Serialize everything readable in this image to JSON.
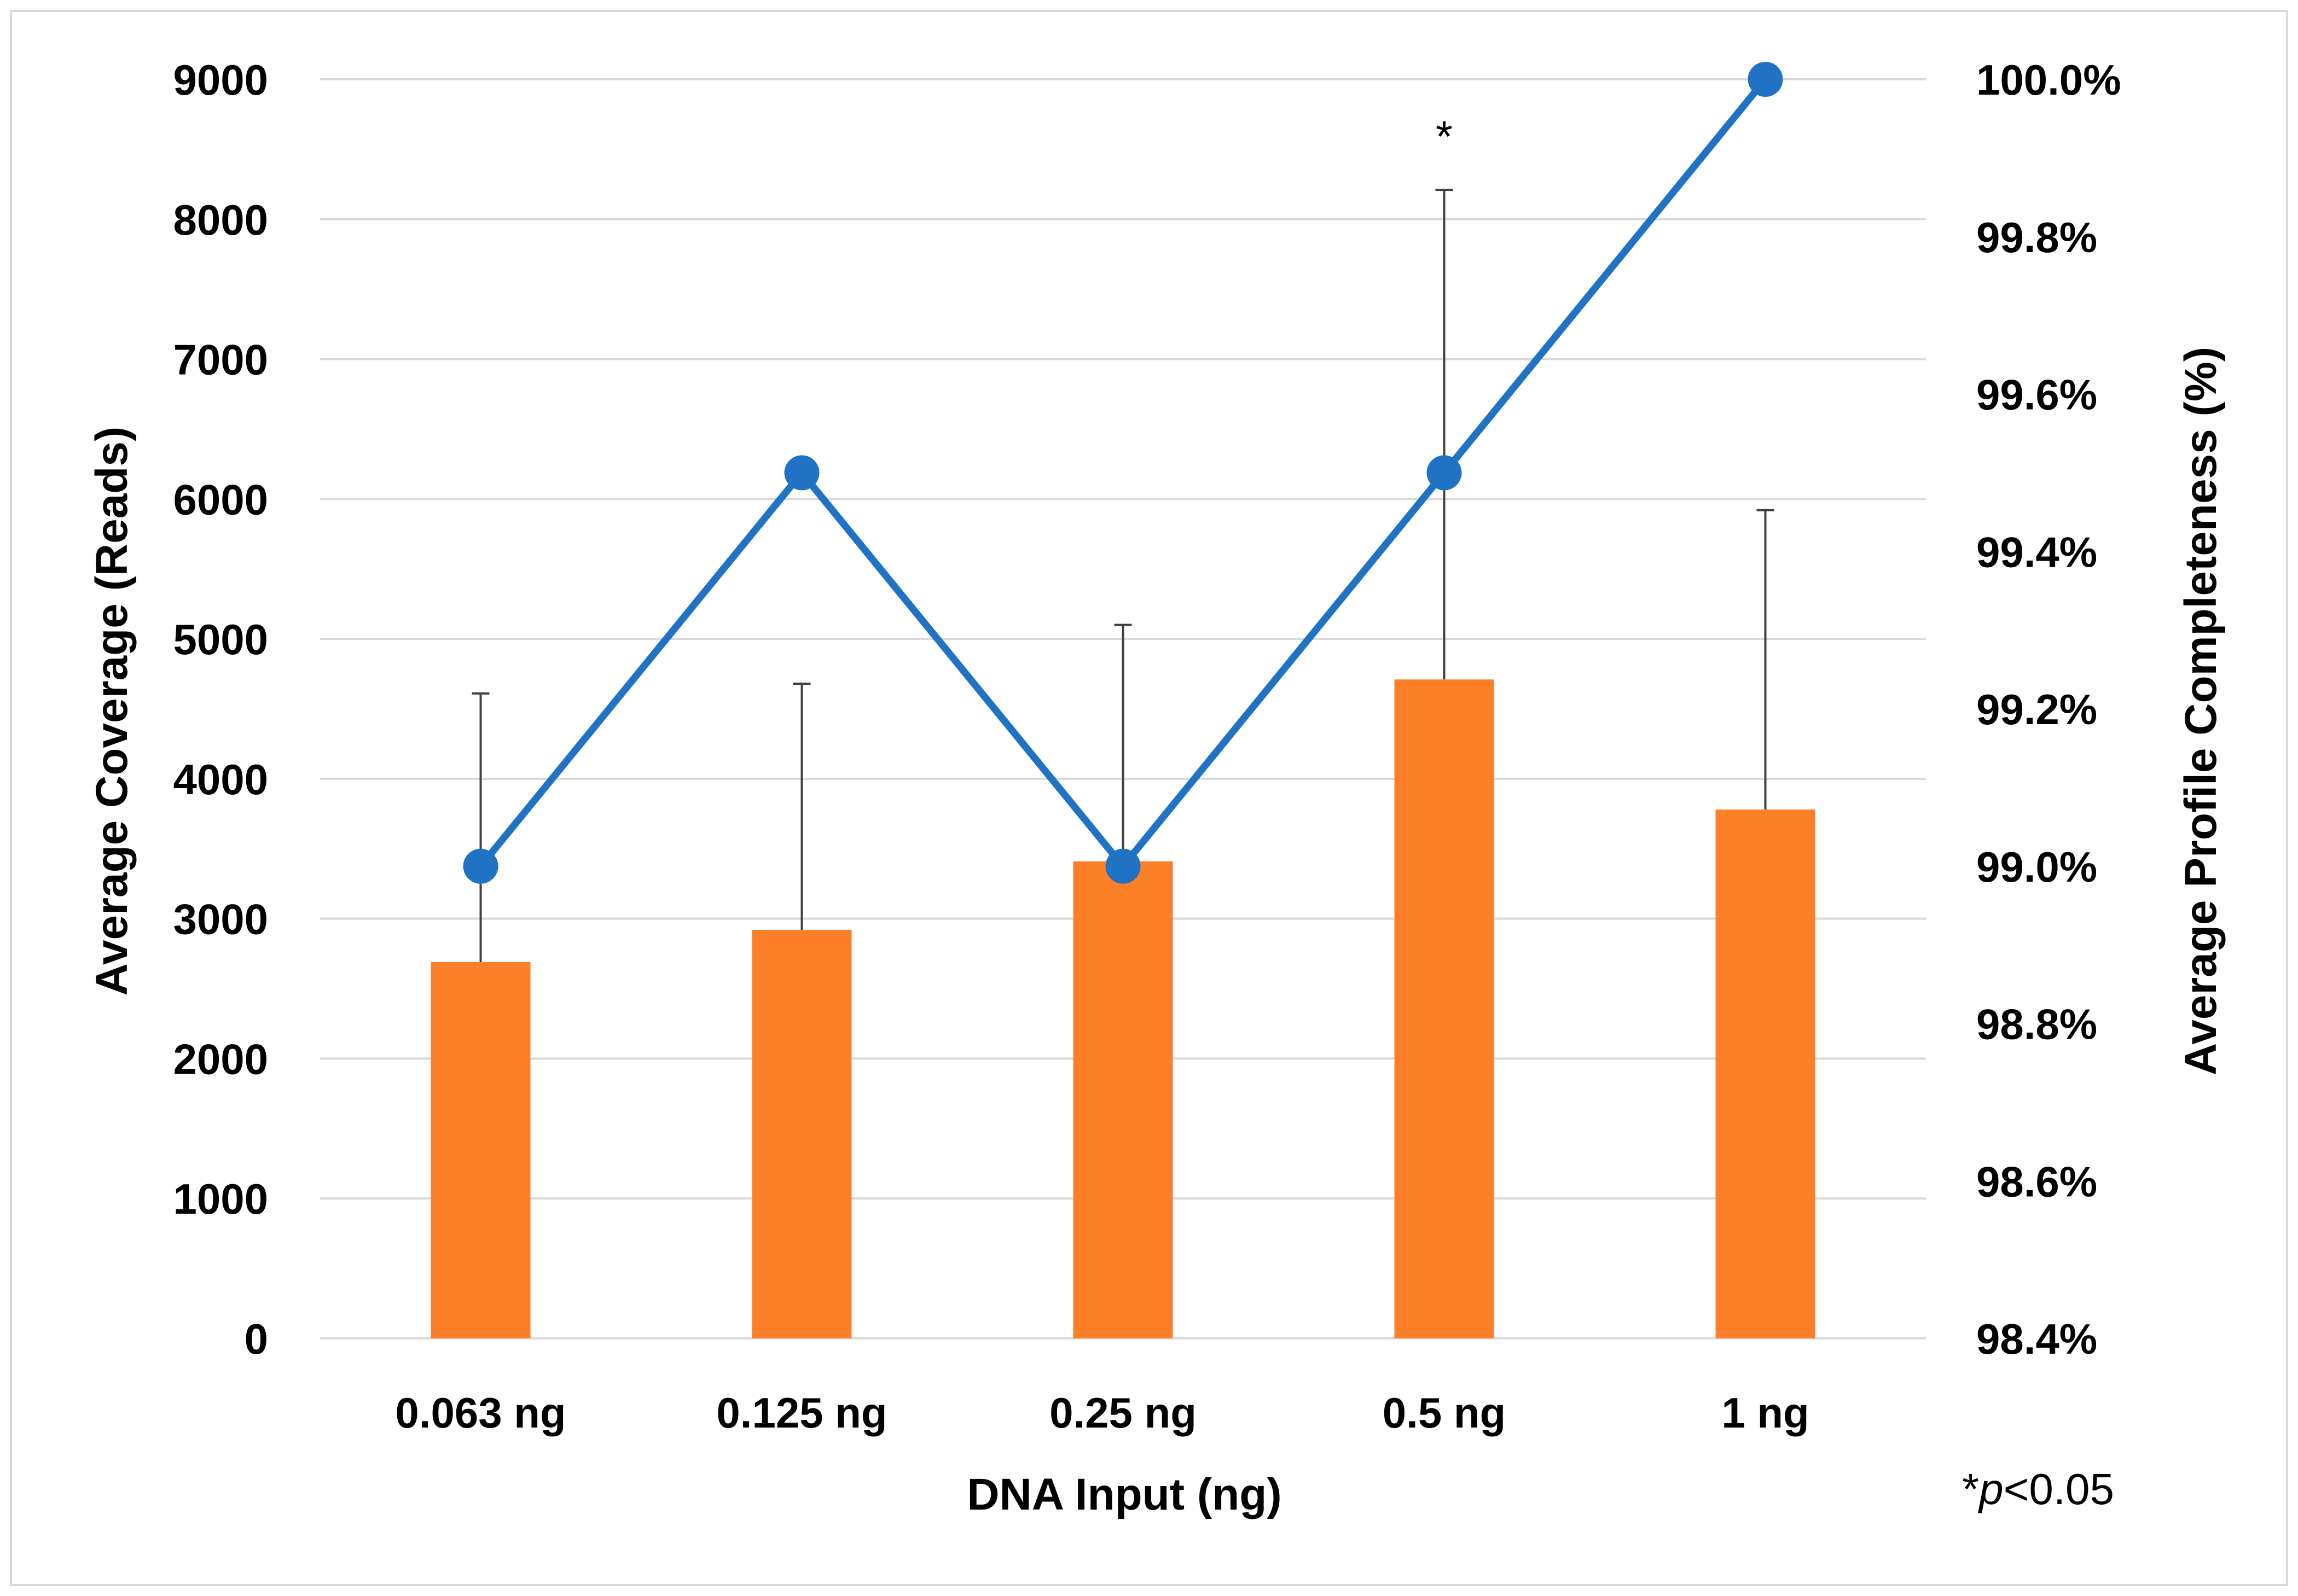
{
  "chart_data": {
    "type": "bar+line",
    "x_title": "DNA Input (ng)",
    "categories": [
      "0.063 ng",
      "0.125 ng",
      "0.25 ng",
      "0.5 ng",
      "1 ng"
    ],
    "primary_axis": {
      "label": "Average Coverage (Reads)",
      "ylim": [
        0,
        9000
      ],
      "ticks": [
        0,
        1000,
        2000,
        3000,
        4000,
        5000,
        6000,
        7000,
        8000,
        9000
      ],
      "tick_labels": [
        "0",
        "1000",
        "2000",
        "3000",
        "4000",
        "5000",
        "6000",
        "7000",
        "8000",
        "9000"
      ]
    },
    "secondary_axis": {
      "label": "Average Profile Completeness (%)",
      "ylim": [
        98.4,
        100.0
      ],
      "ticks": [
        98.4,
        98.6,
        98.8,
        99.0,
        99.2,
        99.4,
        99.6,
        99.8,
        100.0
      ],
      "tick_labels": [
        "98.4%",
        "98.6%",
        "98.8%",
        "99.0%",
        "99.2%",
        "99.4%",
        "99.6%",
        "99.8%",
        "100.0%"
      ]
    },
    "series": [
      {
        "name": "Average Coverage (Reads)",
        "type": "bar",
        "axis": "primary",
        "color": "#fd7f28",
        "values": [
          2690,
          2920,
          3410,
          4710,
          3780
        ],
        "error_upper": [
          4610,
          4680,
          5100,
          8210,
          5920
        ]
      },
      {
        "name": "Average Profile Completeness (%)",
        "type": "line",
        "axis": "secondary",
        "color": "#1f72c4",
        "values": [
          99.0,
          99.5,
          99.0,
          99.5,
          100.0
        ]
      }
    ],
    "annotations": [
      {
        "category": "0.5 ng",
        "text": "*"
      }
    ],
    "footnote": {
      "prefix": "*",
      "italic": "p",
      "suffix": "<0.05"
    }
  }
}
